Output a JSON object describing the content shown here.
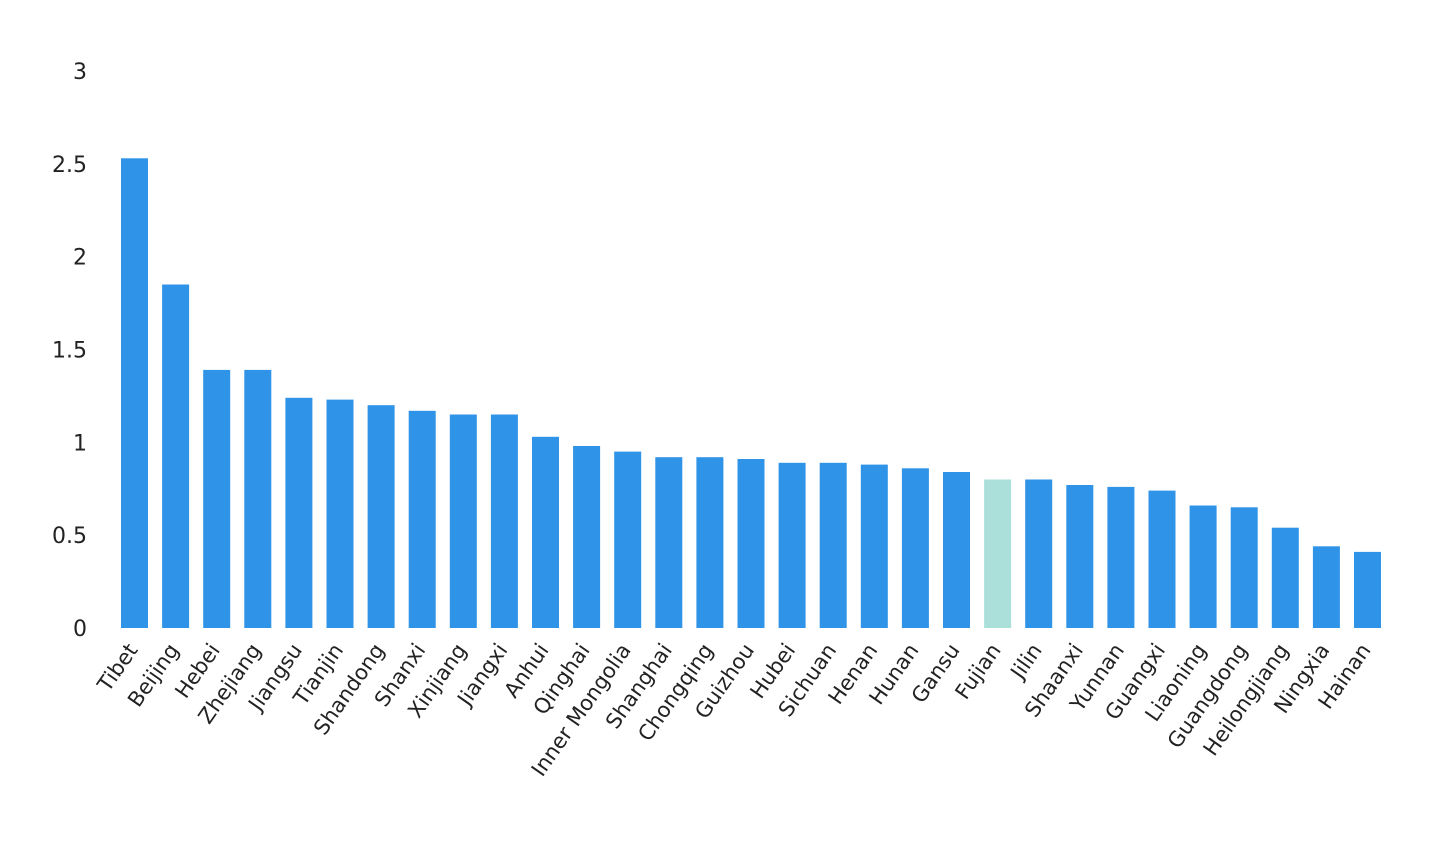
{
  "chart_data": {
    "type": "bar",
    "title": "",
    "xlabel": "",
    "ylabel": "",
    "ylim": [
      0,
      3
    ],
    "yticks": [
      "0",
      "0.5",
      "1",
      "1.5",
      "2",
      "2.5",
      "3"
    ],
    "grid": false,
    "legend": "none",
    "categories": [
      "Tibet",
      "Beijing",
      "Hebei",
      "Zhejiang",
      "Jiangsu",
      "Tianjin",
      "Shandong",
      "Shanxi",
      "Xinjiang",
      "Jiangxi",
      "Anhui",
      "Qinghai",
      "Inner Mongolia",
      "Shanghai",
      "Chongqing",
      "Guizhou",
      "Hubei",
      "Sichuan",
      "Henan",
      "Hunan",
      "Gansu",
      "Fujian",
      "Jilin",
      "Shaanxi",
      "Yunnan",
      "Guangxi",
      "Liaoning",
      "Guangdong",
      "Heilongjiang",
      "Ningxia",
      "Hainan"
    ],
    "values": [
      2.53,
      1.85,
      1.39,
      1.39,
      1.24,
      1.23,
      1.2,
      1.17,
      1.15,
      1.15,
      1.03,
      0.98,
      0.95,
      0.92,
      0.92,
      0.91,
      0.89,
      0.89,
      0.88,
      0.86,
      0.84,
      0.8,
      0.8,
      0.77,
      0.76,
      0.74,
      0.66,
      0.65,
      0.54,
      0.44,
      0.41
    ],
    "colors": {
      "bar": "#2f93e8",
      "highlight": "#abe0da"
    },
    "highlight_category": "Fujian"
  }
}
